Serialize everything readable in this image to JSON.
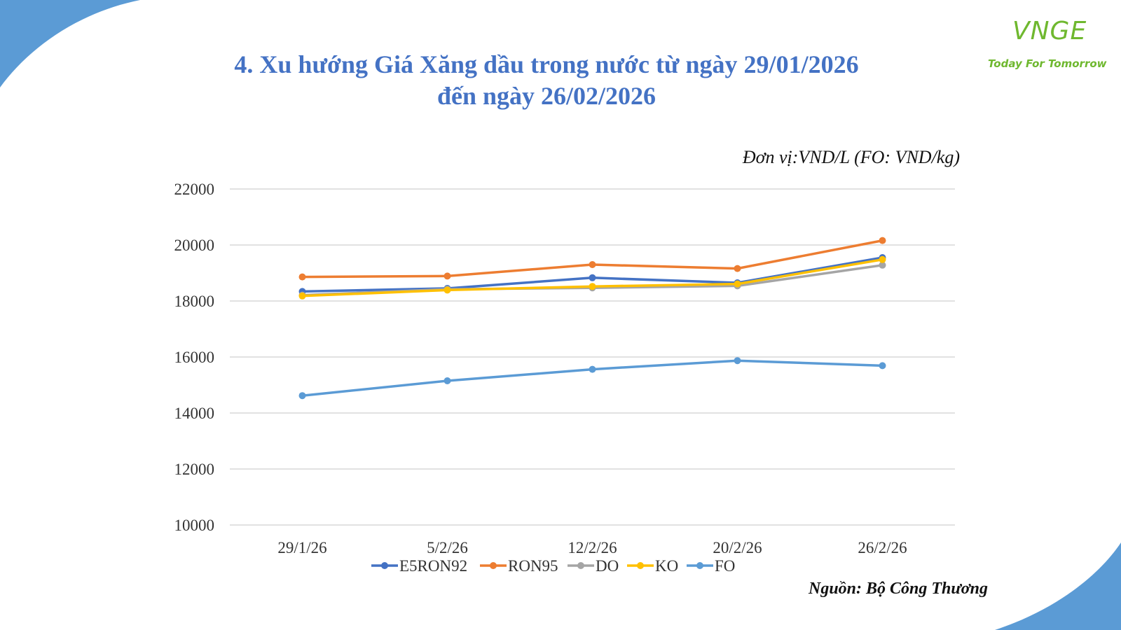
{
  "page": {
    "title_line1": "4. Xu hướng Giá Xăng dầu trong nước từ ngày 29/01/2026",
    "title_line2": "đến ngày 26/02/2026",
    "unit": "Đơn vị:VND/L (FO: VND/kg)",
    "source": "Nguồn: Bộ Công Thương",
    "logo_mark": "VNGE",
    "logo_tagline": "Today For Tomorrow",
    "accent_color": "#4472C4",
    "corner_color": "#5b9bd5"
  },
  "chart_data": {
    "type": "line",
    "categories": [
      "29/1/26",
      "5/2/26",
      "12/2/26",
      "20/2/26",
      "26/2/26"
    ],
    "ylim": [
      10000,
      22000
    ],
    "yticks": [
      10000,
      12000,
      14000,
      16000,
      18000,
      20000,
      22000
    ],
    "grid": true,
    "legend_position": "bottom",
    "series": [
      {
        "name": "E5RON92",
        "color": "#4472C4",
        "values": [
          18340,
          18450,
          18830,
          18650,
          19550
        ]
      },
      {
        "name": "RON95",
        "color": "#ED7D31",
        "values": [
          18860,
          18890,
          19300,
          19160,
          20160
        ]
      },
      {
        "name": "DO",
        "color": "#A5A5A5",
        "values": [
          18210,
          18420,
          18470,
          18540,
          19280
        ]
      },
      {
        "name": "KO",
        "color": "#FFC000",
        "values": [
          18180,
          18390,
          18520,
          18610,
          19480
        ]
      },
      {
        "name": "FO",
        "color": "#5B9BD5",
        "values": [
          14620,
          15150,
          15560,
          15870,
          15690
        ]
      }
    ]
  }
}
